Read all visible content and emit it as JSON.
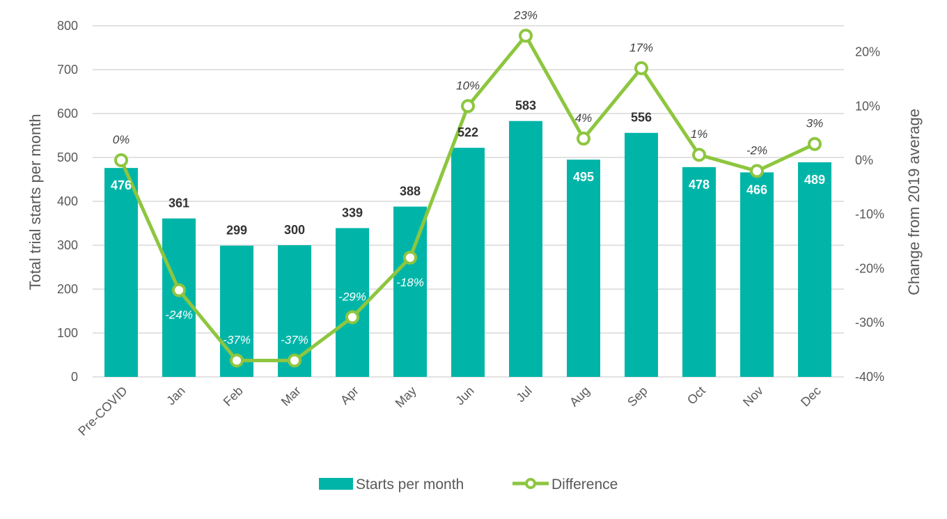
{
  "chart_data": {
    "type": "bar",
    "categories": [
      "Pre-COVID",
      "Jan",
      "Feb",
      "Mar",
      "Apr",
      "May",
      "Jun",
      "Jul",
      "Aug",
      "Sep",
      "Oct",
      "Nov",
      "Dec"
    ],
    "series": [
      {
        "name": "Starts per month",
        "type": "bar",
        "axis": "left",
        "color": "#00B5A8",
        "values": [
          476,
          361,
          299,
          300,
          339,
          388,
          522,
          583,
          495,
          556,
          478,
          466,
          489
        ]
      },
      {
        "name": "Difference",
        "type": "line",
        "axis": "right",
        "color": "#8DC63F",
        "marker": "hollow-circle",
        "values": [
          0,
          -24,
          -37,
          -37,
          -29,
          -18,
          10,
          23,
          4,
          17,
          1,
          -2,
          3
        ],
        "labels": [
          "0%",
          "-24%",
          "-37%",
          "-37%",
          "-29%",
          "-18%",
          "10%",
          "23%",
          "4%",
          "17%",
          "1%",
          "-2%",
          "3%"
        ]
      }
    ],
    "ylabel": "Total trial starts per month",
    "ylim": [
      0,
      800
    ],
    "yticks": [
      "0",
      "100",
      "200",
      "300",
      "400",
      "500",
      "600",
      "700",
      "800"
    ],
    "y2label": "Change from 2019 average",
    "y2lim": [
      -40,
      24
    ],
    "y2ticks": [
      "-40%",
      "-30%",
      "-20%",
      "-10%",
      "0%",
      "10%",
      "20%"
    ],
    "grid": true,
    "legend": "bottom"
  }
}
